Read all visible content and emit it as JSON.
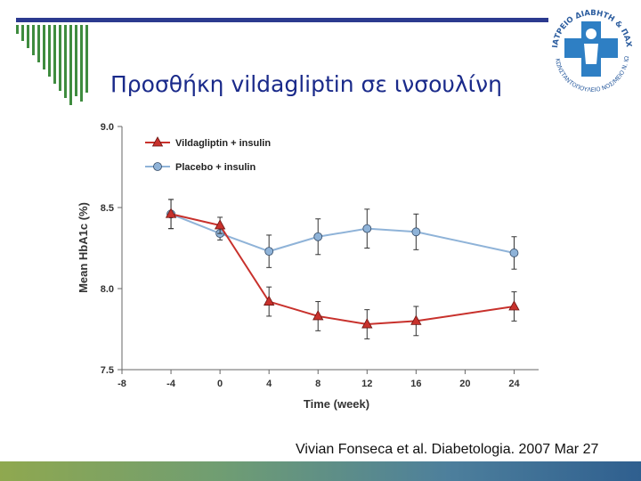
{
  "slide": {
    "title": "Προσθήκη vildagliptin σε ινσουλίνη",
    "citation": "Vivian Fonseca et al. Diabetologia. 2007 Mar 27",
    "colors": {
      "title": "#1a2a8a",
      "header_bar": "#2b3a8f",
      "deco_bars": "#3f8c3f"
    }
  },
  "logo": {
    "text_top": "ΙΑΤΡΕΙΟ ΔΙΑΒΗΤΗ & ΠΑΧΥΣΑΡΚΙΑΣ",
    "text_bottom": "ΚΩΝΣΤΑΝΤΟΠΟΥΛΕΙΟ ΝΟΣ/ΜΕΙΟ Ν. ΙΩΝΙΑΣ",
    "icon": "medical-cross-emblem"
  },
  "chart_data": {
    "type": "line",
    "xlabel": "Time (week)",
    "ylabel": "Mean HbA1c (%)",
    "xlim": [
      -8,
      26
    ],
    "ylim": [
      7.5,
      9.0
    ],
    "xticks": [
      -8,
      -4,
      0,
      4,
      8,
      12,
      16,
      20,
      24
    ],
    "yticks": [
      7.5,
      8.0,
      8.5,
      9.0
    ],
    "ytick_labels": [
      "7.5",
      "8.0",
      "8.5",
      "9.0"
    ],
    "legend_position": "top-left",
    "series": [
      {
        "name": "Vildagliptin + insulin",
        "color": "#c8312c",
        "marker": "triangle",
        "x": [
          -4,
          0,
          4,
          8,
          12,
          16,
          24
        ],
        "y": [
          8.46,
          8.39,
          7.92,
          7.83,
          7.78,
          7.8,
          7.89
        ],
        "err": [
          0.09,
          0.05,
          0.09,
          0.09,
          0.09,
          0.09,
          0.09
        ]
      },
      {
        "name": "Placebo + insulin",
        "color": "#8fb3d8",
        "marker": "circle",
        "x": [
          -4,
          0,
          4,
          8,
          12,
          16,
          24
        ],
        "y": [
          8.46,
          8.34,
          8.23,
          8.32,
          8.37,
          8.35,
          8.22
        ],
        "err": [
          0.09,
          0.04,
          0.1,
          0.11,
          0.12,
          0.11,
          0.1
        ]
      }
    ]
  }
}
